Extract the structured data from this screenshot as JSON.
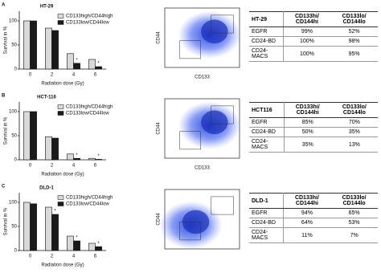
{
  "panels": [
    {
      "label": "A",
      "flow": {
        "ylabel": "CD44",
        "xlabel": "CD133"
      },
      "table": {
        "header": [
          "HT-29",
          "CD133hi/ CD144hi",
          "CD133lo/ CD144lo"
        ],
        "rows": [
          [
            "EGFR",
            "99%",
            "52%"
          ],
          [
            "CD24-BD",
            "100%",
            "98%"
          ],
          [
            "CD24-MACS",
            "100%",
            "95%"
          ]
        ]
      }
    },
    {
      "label": "B",
      "flow": {
        "ylabel": "CD44",
        "xlabel": "CD133"
      },
      "table": {
        "header": [
          "HCT116",
          "CD133hi/ CD144hi",
          "CD133lo/ CD144lo"
        ],
        "rows": [
          [
            "EGFR",
            "85%",
            "70%"
          ],
          [
            "CD24-BD",
            "50%",
            "35%"
          ],
          [
            "CD24-MACS",
            "35%",
            "13%"
          ]
        ]
      }
    },
    {
      "label": "C",
      "flow": {
        "ylabel": "CD44"
      },
      "table": {
        "header": [
          "DLD-1",
          "CD133hi/ CD144hi",
          "CD133lo/ CD144lo"
        ],
        "rows": [
          [
            "EGFR",
            "94%",
            "65%"
          ],
          [
            "CD24-BD",
            "64%",
            "53%"
          ],
          [
            "CD24-MACS",
            "11%",
            "7%"
          ]
        ]
      }
    }
  ],
  "chart_data": [
    {
      "type": "bar",
      "title": "HT-29",
      "categories": [
        "0",
        "2",
        "4",
        "6"
      ],
      "xlabel": "Radiation dose (Gy)",
      "ylabel": "Survival in %",
      "ylim": [
        0,
        120
      ],
      "yticks": [
        0,
        50,
        100
      ],
      "series": [
        {
          "name": "CD133high/CD44high",
          "color": "#d9d9d9",
          "values": [
            100,
            85,
            32,
            20
          ]
        },
        {
          "name": "CD133low/CD44low",
          "color": "#1a1a1a",
          "values": [
            100,
            80,
            12,
            5
          ],
          "marks": [
            null,
            null,
            "*",
            "*"
          ]
        }
      ]
    },
    {
      "type": "bar",
      "title": "HCT-116",
      "categories": [
        "0",
        "2",
        "4",
        "6"
      ],
      "xlabel": "Radiation dose (Gy)",
      "ylabel": "Survival in %",
      "ylim": [
        0,
        120
      ],
      "yticks": [
        0,
        50,
        100
      ],
      "series": [
        {
          "name": "CD133high/CD44high",
          "color": "#d9d9d9",
          "values": [
            100,
            48,
            12,
            3
          ]
        },
        {
          "name": "CD133low/CD44low",
          "color": "#1a1a1a",
          "values": [
            100,
            45,
            3,
            1
          ],
          "marks": [
            null,
            null,
            "*",
            "*"
          ]
        }
      ]
    },
    {
      "type": "bar",
      "title": "DLD-1",
      "categories": [
        "0",
        "2",
        "4",
        "6"
      ],
      "xlabel": "Radiation dose (Gy)",
      "ylabel": "Survival in %",
      "ylim": [
        0,
        120
      ],
      "yticks": [
        0,
        50,
        100
      ],
      "series": [
        {
          "name": "CD133high/CD44high",
          "color": "#d9d9d9",
          "values": [
            100,
            90,
            30,
            15
          ]
        },
        {
          "name": "CD133low/CD44low",
          "color": "#1a1a1a",
          "values": [
            97,
            75,
            20,
            8
          ],
          "marks": [
            null,
            "*",
            "*",
            "*"
          ]
        }
      ]
    }
  ]
}
